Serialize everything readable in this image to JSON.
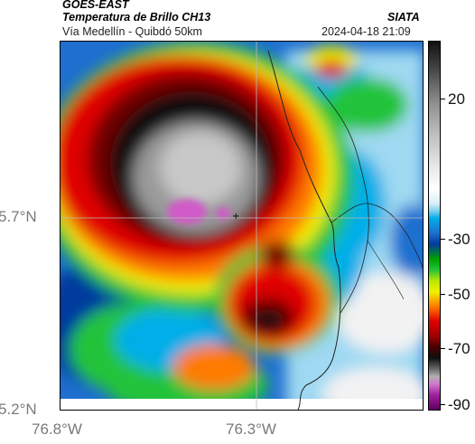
{
  "header": {
    "satellite": "GOES-EAST",
    "product": "Temperatura de Brillo CH13",
    "source": "SIATA",
    "route": "Vía Medellín - Quibdó 50km",
    "datetime": "2024-04-18 21:09"
  },
  "axes": {
    "lat_ticks": [
      "5.7°N",
      "5.2°N"
    ],
    "lon_ticks": [
      "76.8°W",
      "76.3°W"
    ]
  },
  "colorbar": {
    "ticks": [
      "20",
      "-30",
      "-50",
      "-70",
      "-90"
    ]
  },
  "colors": {
    "white": "#f2f2f2",
    "light_blue": "#9fd9f2",
    "cyan": "#00aee8",
    "blue": "#1f6fd0",
    "dark_blue": "#003a9e",
    "green": "#22c33a",
    "yellow": "#f0f000",
    "orange": "#ff7a00",
    "red": "#e00000",
    "dark_red": "#6e0000",
    "black": "#101010",
    "gray": "#9a9a9a",
    "magenta": "#d05ac8"
  }
}
